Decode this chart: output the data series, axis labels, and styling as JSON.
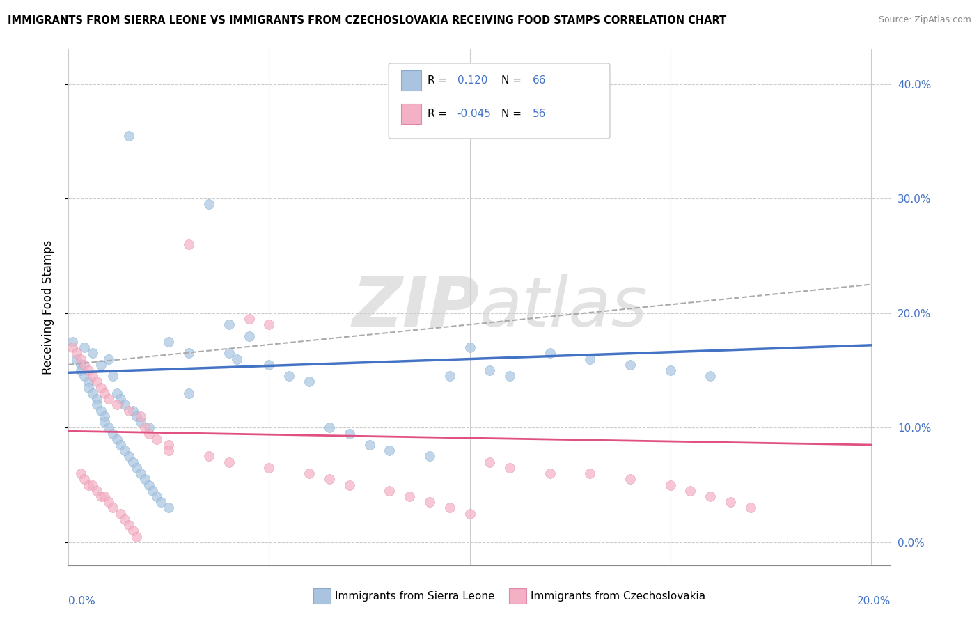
{
  "title": "IMMIGRANTS FROM SIERRA LEONE VS IMMIGRANTS FROM CZECHOSLOVAKIA RECEIVING FOOD STAMPS CORRELATION CHART",
  "source": "Source: ZipAtlas.com",
  "ylabel": "Receiving Food Stamps",
  "yticks_labels": [
    "0.0%",
    "10.0%",
    "20.0%",
    "30.0%",
    "40.0%"
  ],
  "ytick_vals": [
    0.0,
    0.1,
    0.2,
    0.3,
    0.4
  ],
  "xlim": [
    0.0,
    0.205
  ],
  "ylim": [
    -0.02,
    0.43
  ],
  "legend_label1": "Immigrants from Sierra Leone",
  "legend_label2": "Immigrants from Czechoslovakia",
  "r1": "0.120",
  "n1": "66",
  "r2": "-0.045",
  "n2": "56",
  "color1": "#aac4e0",
  "color2": "#f4b0c4",
  "line_color1": "#4472C4",
  "line_color2": "#e05080",
  "dash_color": "#aaaaaa",
  "tick_color": "#4472C4",
  "background_color": "#ffffff",
  "sl_x": [
    0.001,
    0.002,
    0.003,
    0.003,
    0.004,
    0.004,
    0.005,
    0.005,
    0.006,
    0.006,
    0.007,
    0.007,
    0.008,
    0.008,
    0.009,
    0.009,
    0.01,
    0.01,
    0.011,
    0.011,
    0.012,
    0.012,
    0.013,
    0.013,
    0.014,
    0.014,
    0.015,
    0.015,
    0.016,
    0.016,
    0.017,
    0.017,
    0.018,
    0.018,
    0.019,
    0.02,
    0.02,
    0.021,
    0.022,
    0.023,
    0.025,
    0.025,
    0.03,
    0.03,
    0.035,
    0.04,
    0.04,
    0.042,
    0.045,
    0.05,
    0.055,
    0.06,
    0.065,
    0.07,
    0.075,
    0.08,
    0.09,
    0.095,
    0.1,
    0.105,
    0.11,
    0.12,
    0.13,
    0.14,
    0.15,
    0.16
  ],
  "sl_y": [
    0.175,
    0.16,
    0.155,
    0.15,
    0.17,
    0.145,
    0.14,
    0.135,
    0.13,
    0.165,
    0.125,
    0.12,
    0.115,
    0.155,
    0.11,
    0.105,
    0.1,
    0.16,
    0.145,
    0.095,
    0.09,
    0.13,
    0.085,
    0.125,
    0.08,
    0.12,
    0.355,
    0.075,
    0.07,
    0.115,
    0.065,
    0.11,
    0.06,
    0.105,
    0.055,
    0.05,
    0.1,
    0.045,
    0.04,
    0.035,
    0.175,
    0.03,
    0.165,
    0.13,
    0.295,
    0.19,
    0.165,
    0.16,
    0.18,
    0.155,
    0.145,
    0.14,
    0.1,
    0.095,
    0.085,
    0.08,
    0.075,
    0.145,
    0.17,
    0.15,
    0.145,
    0.165,
    0.16,
    0.155,
    0.15,
    0.145
  ],
  "cz_x": [
    0.001,
    0.002,
    0.003,
    0.003,
    0.004,
    0.004,
    0.005,
    0.005,
    0.006,
    0.006,
    0.007,
    0.007,
    0.008,
    0.008,
    0.009,
    0.009,
    0.01,
    0.01,
    0.011,
    0.012,
    0.013,
    0.014,
    0.015,
    0.015,
    0.016,
    0.017,
    0.018,
    0.019,
    0.02,
    0.022,
    0.025,
    0.025,
    0.03,
    0.035,
    0.04,
    0.045,
    0.05,
    0.05,
    0.06,
    0.065,
    0.07,
    0.08,
    0.085,
    0.09,
    0.095,
    0.1,
    0.105,
    0.11,
    0.12,
    0.13,
    0.14,
    0.15,
    0.155,
    0.16,
    0.165,
    0.17
  ],
  "cz_y": [
    0.17,
    0.165,
    0.06,
    0.16,
    0.155,
    0.055,
    0.05,
    0.15,
    0.145,
    0.05,
    0.14,
    0.045,
    0.04,
    0.135,
    0.13,
    0.04,
    0.035,
    0.125,
    0.03,
    0.12,
    0.025,
    0.02,
    0.015,
    0.115,
    0.01,
    0.005,
    0.11,
    0.1,
    0.095,
    0.09,
    0.085,
    0.08,
    0.26,
    0.075,
    0.07,
    0.195,
    0.19,
    0.065,
    0.06,
    0.055,
    0.05,
    0.045,
    0.04,
    0.035,
    0.03,
    0.025,
    0.07,
    0.065,
    0.06,
    0.06,
    0.055,
    0.05,
    0.045,
    0.04,
    0.035,
    0.03
  ],
  "sl_line_x": [
    0.0,
    0.2
  ],
  "sl_line_y": [
    0.148,
    0.172
  ],
  "cz_line_x": [
    0.0,
    0.2
  ],
  "cz_line_y": [
    0.097,
    0.085
  ],
  "dash_line_x": [
    0.0,
    0.2
  ],
  "dash_line_y": [
    0.155,
    0.225
  ]
}
